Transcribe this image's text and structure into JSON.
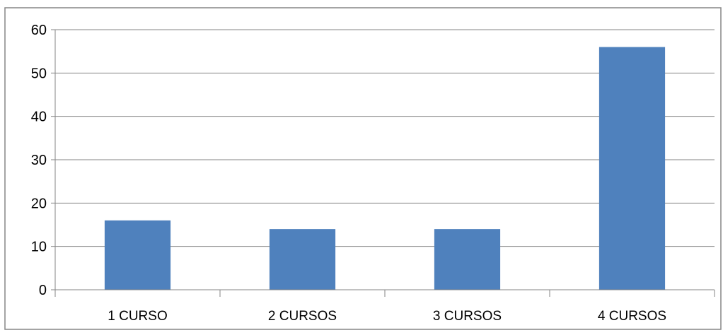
{
  "chart_data": {
    "type": "bar",
    "title": "",
    "xlabel": "",
    "ylabel": "",
    "categories": [
      "1 CURSO",
      "2 CURSOS",
      "3 CURSOS",
      "4 CURSOS"
    ],
    "values": [
      16,
      14,
      14,
      56
    ],
    "ylim": [
      0,
      60
    ],
    "yticks": [
      0,
      10,
      20,
      30,
      40,
      50,
      60
    ],
    "grid": true,
    "legend": "none",
    "bar_color": "#4F81BD",
    "grid_color": "#868686",
    "axis_color": "#868686",
    "text_color": "#000000"
  }
}
